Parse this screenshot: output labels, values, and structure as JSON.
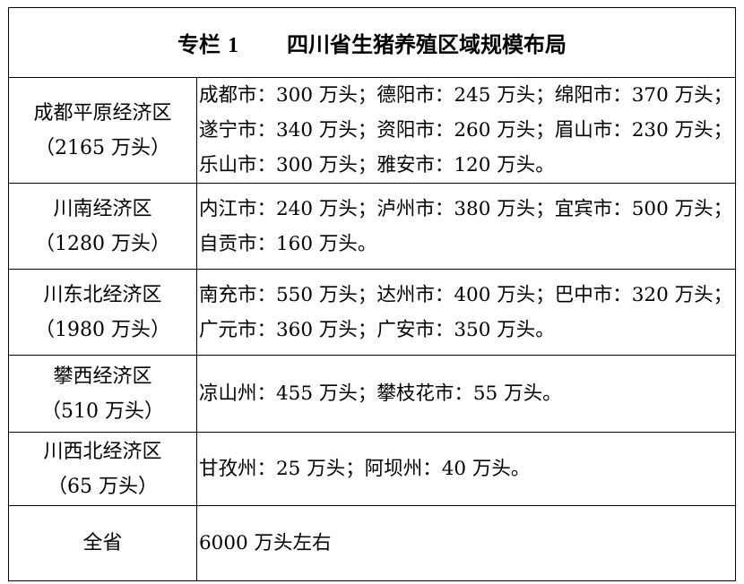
{
  "title": {
    "prefix": "专栏",
    "number": "1",
    "text": "四川省生猪养殖区域规模布局"
  },
  "rows": [
    {
      "region": "成都平原经济区",
      "total": "（2165 万头）",
      "lines": [
        "成都市：300 万头；德阳市：245 万头；绵阳市：370 万头；",
        "遂宁市：340 万头；资阳市：260 万头；眉山市：230 万头；",
        "乐山市：300 万头；雅安市：120 万头。"
      ]
    },
    {
      "region": "川南经济区",
      "total": "（1280 万头）",
      "lines": [
        "内江市：240 万头；泸州市：380 万头；宜宾市：500 万头；",
        "自贡市：160 万头。"
      ]
    },
    {
      "region": "川东北经济区",
      "total": "（1980 万头）",
      "lines": [
        "南充市：550 万头；达州市：400 万头；巴中市：320 万头；",
        "广元市：360 万头；广安市：350 万头。"
      ]
    },
    {
      "region": "攀西经济区",
      "total": "（510 万头）",
      "lines": [
        "凉山州：455 万头；攀枝花市：55 万头。"
      ]
    },
    {
      "region": "川西北经济区",
      "total": "（65 万头）",
      "lines": [
        "甘孜州：25 万头；阿坝州：40 万头。"
      ]
    },
    {
      "region": "全省",
      "total": "",
      "lines": [
        "6000 万头左右"
      ]
    }
  ]
}
